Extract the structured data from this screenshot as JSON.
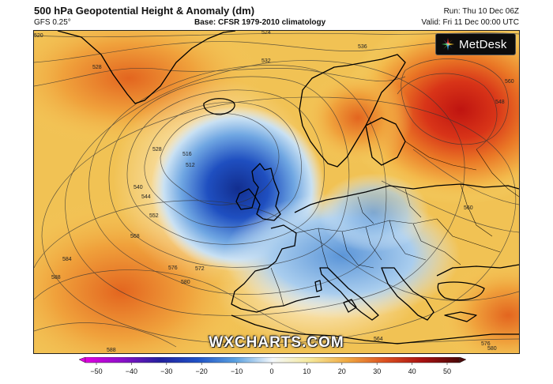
{
  "header": {
    "title": "500 hPa Geopotential Height & Anomaly (dm)",
    "model": "GFS 0.25°",
    "base": "Base: CFSR 1979-2010 climatology",
    "run": "Run: Thu 10 Dec 06Z",
    "valid": "Valid: Fri 11 Dec 00:00 UTC"
  },
  "logo": {
    "text": "MetDesk"
  },
  "watermark": "WXCHARTS.COM",
  "contour_labels": [
    "520",
    "524",
    "528",
    "532",
    "536",
    "560",
    "548",
    "540",
    "544",
    "552",
    "568",
    "584",
    "588",
    "576",
    "580",
    "572",
    "564",
    "516",
    "512",
    "528",
    "560",
    "588",
    "576",
    "580"
  ],
  "colorbar": {
    "ticks": [
      "−50",
      "−40",
      "−30",
      "−20",
      "−10",
      "0",
      "10",
      "20",
      "30",
      "40",
      "50"
    ],
    "colors": [
      "#d400d4",
      "#8a00c8",
      "#1d1a9e",
      "#1e50c8",
      "#5a9ae0",
      "#c9e2f2",
      "#f4eea0",
      "#f2b04a",
      "#e06020",
      "#b51414",
      "#5a0a0a"
    ]
  },
  "colors": {
    "negative_strong": "#0e2f9a",
    "positive_strong": "#c81a12",
    "land_borders": "#000000"
  }
}
